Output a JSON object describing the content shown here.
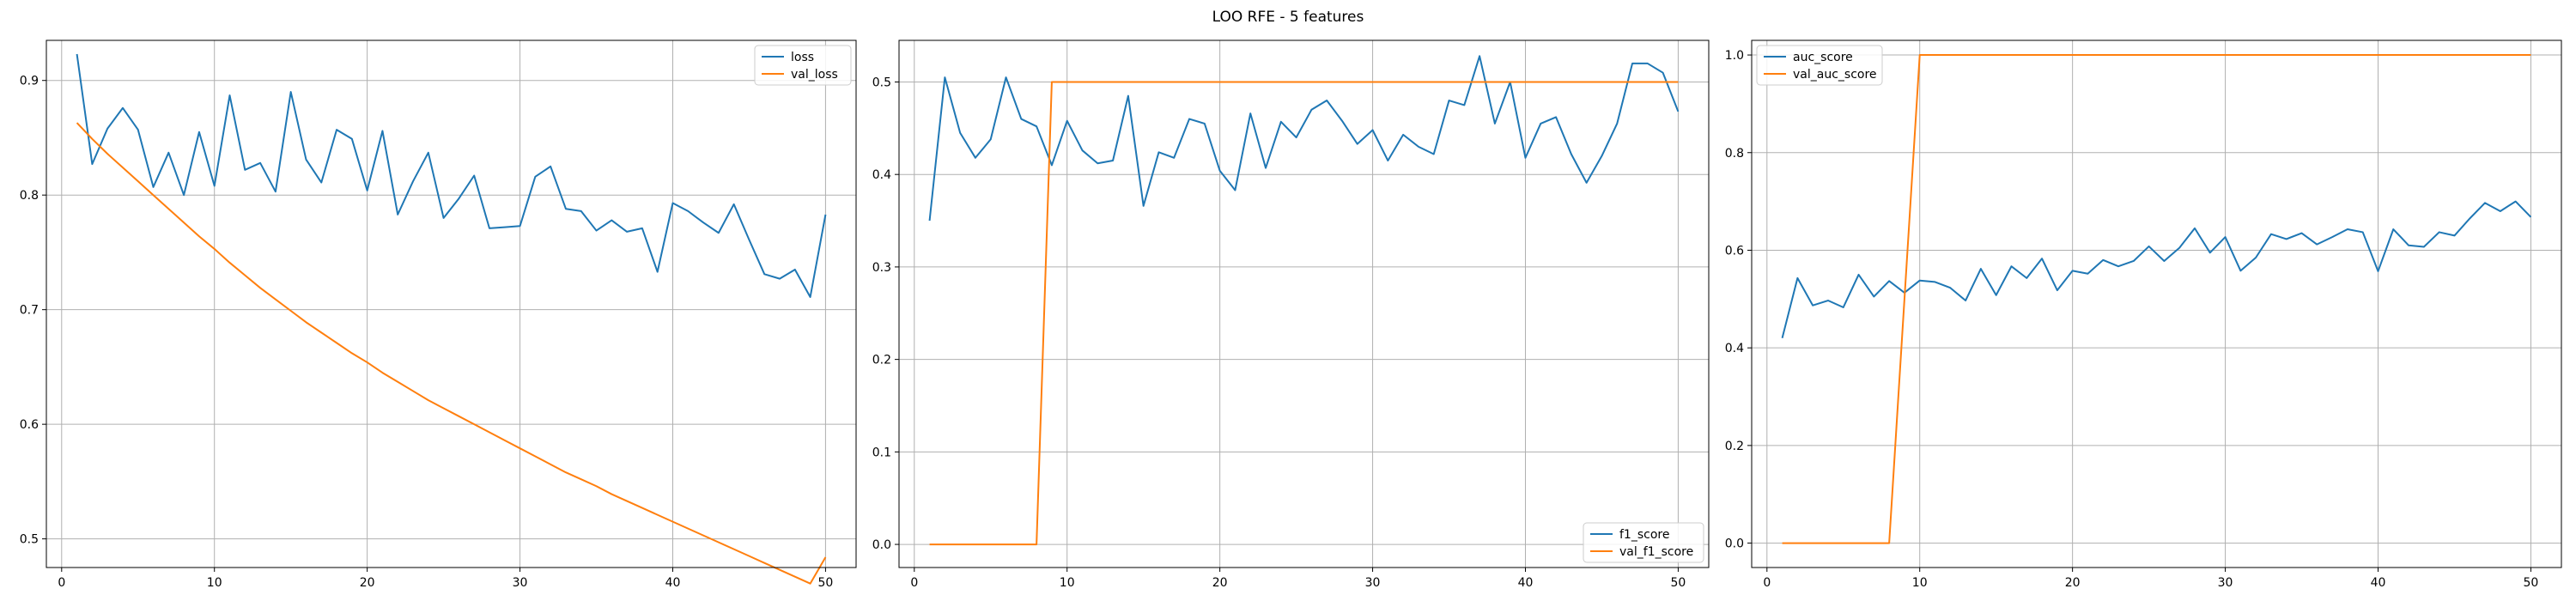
{
  "figure": {
    "title": "LOO RFE - 5 features"
  },
  "chart_data": [
    {
      "type": "line",
      "title": "",
      "xlabel": "",
      "ylabel": "",
      "grid": true,
      "xlim": [
        -1,
        52
      ],
      "ylim": [
        0.475,
        0.935
      ],
      "xticks": [
        0,
        10,
        20,
        30,
        40,
        50
      ],
      "xtick_labels": [
        "0",
        "10",
        "20",
        "30",
        "40",
        "50"
      ],
      "yticks": [
        0.5,
        0.6,
        0.7,
        0.8,
        0.9
      ],
      "ytick_labels": [
        "0.5",
        "0.6",
        "0.7",
        "0.8",
        "0.9"
      ],
      "legend": {
        "location": "top-right",
        "labels": [
          "loss",
          "val_loss"
        ]
      },
      "x": [
        1,
        2,
        3,
        4,
        5,
        6,
        7,
        8,
        9,
        10,
        11,
        12,
        13,
        14,
        15,
        16,
        17,
        18,
        19,
        20,
        21,
        22,
        23,
        24,
        25,
        26,
        27,
        28,
        29,
        30,
        31,
        32,
        33,
        34,
        35,
        36,
        37,
        38,
        39,
        40,
        41,
        42,
        43,
        44,
        45,
        46,
        47,
        48,
        49,
        50
      ],
      "series": [
        {
          "name": "loss",
          "color": "#1f77b4",
          "values": [
            0.923,
            0.827,
            0.858,
            0.876,
            0.857,
            0.807,
            0.837,
            0.8,
            0.855,
            0.808,
            0.887,
            0.822,
            0.828,
            0.803,
            0.89,
            0.831,
            0.811,
            0.857,
            0.849,
            0.804,
            0.856,
            0.783,
            0.812,
            0.837,
            0.78,
            0.797,
            0.817,
            0.771,
            0.772,
            0.773,
            0.816,
            0.825,
            0.788,
            0.786,
            0.769,
            0.778,
            0.768,
            0.771,
            0.733,
            0.793,
            0.786,
            0.776,
            0.767,
            0.792,
            0.761,
            0.731,
            0.727,
            0.735,
            0.711,
            0.783
          ]
        },
        {
          "name": "val_loss",
          "color": "#ff7f0e",
          "values": [
            0.863,
            0.849,
            0.836,
            0.824,
            0.812,
            0.8,
            0.788,
            0.776,
            0.764,
            0.753,
            0.741,
            0.73,
            0.719,
            0.709,
            0.699,
            0.689,
            0.68,
            0.671,
            0.662,
            0.654,
            0.645,
            0.637,
            0.629,
            0.621,
            0.614,
            0.607,
            0.6,
            0.593,
            0.586,
            0.579,
            0.572,
            0.565,
            0.558,
            0.552,
            0.546,
            0.539,
            0.533,
            0.527,
            0.521,
            0.515,
            0.509,
            0.503,
            0.497,
            0.491,
            0.485,
            0.479,
            0.473,
            0.467,
            0.461,
            0.484
          ]
        }
      ]
    },
    {
      "type": "line",
      "title": "",
      "xlabel": "",
      "ylabel": "",
      "grid": true,
      "xlim": [
        -1,
        52
      ],
      "ylim": [
        -0.025,
        0.545
      ],
      "xticks": [
        0,
        10,
        20,
        30,
        40,
        50
      ],
      "xtick_labels": [
        "0",
        "10",
        "20",
        "30",
        "40",
        "50"
      ],
      "yticks": [
        0.0,
        0.1,
        0.2,
        0.3,
        0.4,
        0.5
      ],
      "ytick_labels": [
        "0.0",
        "0.1",
        "0.2",
        "0.3",
        "0.4",
        "0.5"
      ],
      "legend": {
        "location": "bottom-right",
        "labels": [
          "f1_score",
          "val_f1_score"
        ]
      },
      "x": [
        1,
        2,
        3,
        4,
        5,
        6,
        7,
        8,
        9,
        10,
        11,
        12,
        13,
        14,
        15,
        16,
        17,
        18,
        19,
        20,
        21,
        22,
        23,
        24,
        25,
        26,
        27,
        28,
        29,
        30,
        31,
        32,
        33,
        34,
        35,
        36,
        37,
        38,
        39,
        40,
        41,
        42,
        43,
        44,
        45,
        46,
        47,
        48,
        49,
        50
      ],
      "series": [
        {
          "name": "f1_score",
          "color": "#1f77b4",
          "values": [
            0.35,
            0.505,
            0.445,
            0.418,
            0.438,
            0.505,
            0.46,
            0.452,
            0.41,
            0.458,
            0.426,
            0.412,
            0.415,
            0.485,
            0.366,
            0.424,
            0.418,
            0.46,
            0.455,
            0.404,
            0.383,
            0.466,
            0.407,
            0.457,
            0.44,
            0.47,
            0.48,
            0.458,
            0.433,
            0.448,
            0.415,
            0.443,
            0.43,
            0.422,
            0.48,
            0.475,
            0.528,
            0.455,
            0.5,
            0.418,
            0.455,
            0.462,
            0.422,
            0.391,
            0.42,
            0.455,
            0.52,
            0.52,
            0.51,
            0.468
          ]
        },
        {
          "name": "val_f1_score",
          "color": "#ff7f0e",
          "values": [
            0,
            0,
            0,
            0,
            0,
            0,
            0,
            0,
            0.5,
            0.5,
            0.5,
            0.5,
            0.5,
            0.5,
            0.5,
            0.5,
            0.5,
            0.5,
            0.5,
            0.5,
            0.5,
            0.5,
            0.5,
            0.5,
            0.5,
            0.5,
            0.5,
            0.5,
            0.5,
            0.5,
            0.5,
            0.5,
            0.5,
            0.5,
            0.5,
            0.5,
            0.5,
            0.5,
            0.5,
            0.5,
            0.5,
            0.5,
            0.5,
            0.5,
            0.5,
            0.5,
            0.5,
            0.5,
            0.5,
            0.5
          ]
        }
      ]
    },
    {
      "type": "line",
      "title": "",
      "xlabel": "",
      "ylabel": "",
      "grid": true,
      "xlim": [
        -1,
        52
      ],
      "ylim": [
        -0.05,
        1.03
      ],
      "xticks": [
        0,
        10,
        20,
        30,
        40,
        50
      ],
      "xtick_labels": [
        "0",
        "10",
        "20",
        "30",
        "40",
        "50"
      ],
      "yticks": [
        0.0,
        0.2,
        0.4,
        0.6,
        0.8,
        1.0
      ],
      "ytick_labels": [
        "0.0",
        "0.2",
        "0.4",
        "0.6",
        "0.8",
        "1.0"
      ],
      "legend": {
        "location": "top-left",
        "labels": [
          "auc_score",
          "val_auc_score"
        ]
      },
      "x": [
        1,
        2,
        3,
        4,
        5,
        6,
        7,
        8,
        9,
        10,
        11,
        12,
        13,
        14,
        15,
        16,
        17,
        18,
        19,
        20,
        21,
        22,
        23,
        24,
        25,
        26,
        27,
        28,
        29,
        30,
        31,
        32,
        33,
        34,
        35,
        36,
        37,
        38,
        39,
        40,
        41,
        42,
        43,
        44,
        45,
        46,
        47,
        48,
        49,
        50
      ],
      "series": [
        {
          "name": "auc_score",
          "color": "#1f77b4",
          "values": [
            0.42,
            0.543,
            0.487,
            0.497,
            0.483,
            0.55,
            0.505,
            0.537,
            0.513,
            0.538,
            0.535,
            0.523,
            0.497,
            0.562,
            0.508,
            0.567,
            0.543,
            0.583,
            0.518,
            0.558,
            0.552,
            0.58,
            0.567,
            0.578,
            0.608,
            0.578,
            0.605,
            0.645,
            0.595,
            0.627,
            0.558,
            0.585,
            0.633,
            0.623,
            0.635,
            0.612,
            0.627,
            0.643,
            0.637,
            0.557,
            0.643,
            0.61,
            0.607,
            0.637,
            0.63,
            0.665,
            0.697,
            0.68,
            0.7,
            0.668
          ]
        },
        {
          "name": "val_auc_score",
          "color": "#ff7f0e",
          "values": [
            0,
            0,
            0,
            0,
            0,
            0,
            0,
            0,
            0.5,
            1.0,
            1.0,
            1.0,
            1.0,
            1.0,
            1.0,
            1.0,
            1.0,
            1.0,
            1.0,
            1.0,
            1.0,
            1.0,
            1.0,
            1.0,
            1.0,
            1.0,
            1.0,
            1.0,
            1.0,
            1.0,
            1.0,
            1.0,
            1.0,
            1.0,
            1.0,
            1.0,
            1.0,
            1.0,
            1.0,
            1.0,
            1.0,
            1.0,
            1.0,
            1.0,
            1.0,
            1.0,
            1.0,
            1.0,
            1.0,
            1.0
          ]
        }
      ]
    }
  ]
}
